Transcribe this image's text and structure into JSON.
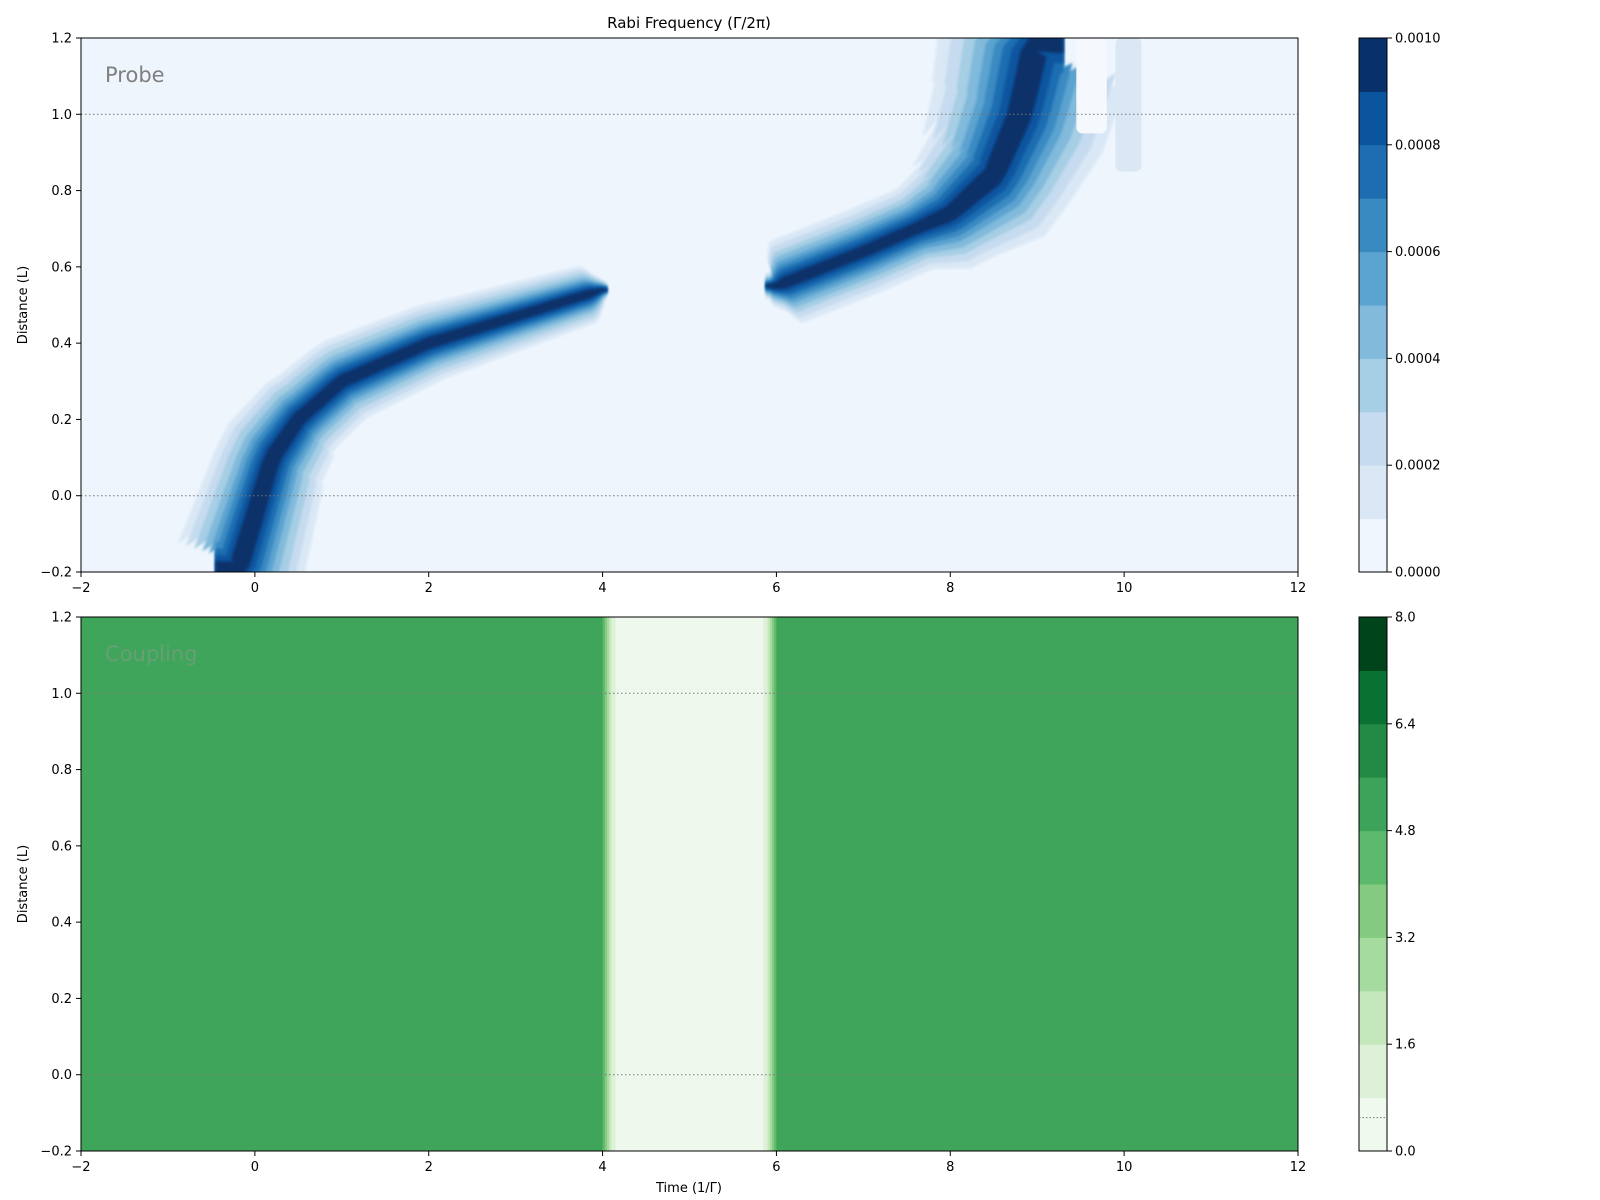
{
  "chart_data": [
    {
      "id": "probe",
      "type": "heatmap",
      "title": "Rabi Frequency (Γ/2π)",
      "panel_label": "Probe",
      "xlabel": "",
      "ylabel": "Distance (L)",
      "xlim": [
        -2,
        12
      ],
      "ylim": [
        -0.2,
        1.2
      ],
      "xticks": [
        "−2",
        "0",
        "2",
        "4",
        "6",
        "8",
        "10",
        "12"
      ],
      "yticks": [
        "−0.2",
        "0.0",
        "0.2",
        "0.4",
        "0.6",
        "0.8",
        "1.0",
        "1.2"
      ],
      "reference_lines_y": [
        0.0,
        1.0
      ],
      "colormap": "Blues",
      "colorbar": {
        "range": [
          0,
          0.001
        ],
        "levels": 10,
        "tick_labels": [
          "0.0000",
          "0.0002",
          "0.0004",
          "0.0006",
          "0.0008",
          "0.0010"
        ],
        "colors": [
          "#f0f6fd",
          "#dae8f6",
          "#c6dbef",
          "#a6cee4",
          "#81badb",
          "#5ba3d0",
          "#3a8ac2",
          "#1f6db1",
          "#0b559f",
          "#08306b"
        ]
      },
      "features": {
        "background": "#eef5fd",
        "pulse_1": {
          "track_x": [
            -0.2,
            0.0,
            0.2,
            0.5,
            1.0,
            2.0,
            3.0,
            4.0
          ],
          "track_y": [
            -0.2,
            -0.05,
            0.1,
            0.2,
            0.3,
            0.4,
            0.47,
            0.54
          ],
          "peak": 0.001
        },
        "pulse_2": {
          "track_x": [
            6.0,
            7.0,
            8.0,
            8.5,
            8.8,
            9.0
          ],
          "track_y": [
            0.55,
            0.64,
            0.74,
            0.84,
            1.0,
            1.2
          ],
          "peak": 0.001
        }
      }
    },
    {
      "id": "coupling",
      "type": "heatmap",
      "title": "",
      "panel_label": "Coupling",
      "xlabel": "Time (1/Γ)",
      "ylabel": "Distance (L)",
      "xlim": [
        -2,
        12
      ],
      "ylim": [
        -0.2,
        1.2
      ],
      "xticks": [
        "−2",
        "0",
        "2",
        "4",
        "6",
        "8",
        "10",
        "12"
      ],
      "yticks": [
        "−0.2",
        "0.0",
        "0.2",
        "0.4",
        "0.6",
        "0.8",
        "1.0",
        "1.2"
      ],
      "reference_lines_y": [
        0.0,
        1.0
      ],
      "colormap": "Greens",
      "colorbar": {
        "range": [
          0,
          8
        ],
        "levels": 10,
        "tick_labels": [
          "0.0",
          "1.6",
          "3.2",
          "4.8",
          "6.4",
          "8.0"
        ],
        "colors": [
          "#f0f9ed",
          "#ddf1d8",
          "#c4e8bc",
          "#a5db9f",
          "#84ca80",
          "#5db96b",
          "#3da35a",
          "#228a45",
          "#097232",
          "#00441b"
        ]
      },
      "features": {
        "on_value": 5.2,
        "on_color": "#3ea55b",
        "off_value": 0.0,
        "off_color": "#eef8ec",
        "off_interval_x": [
          4.0,
          6.0
        ],
        "colorbar_marker": 0.5
      }
    }
  ]
}
